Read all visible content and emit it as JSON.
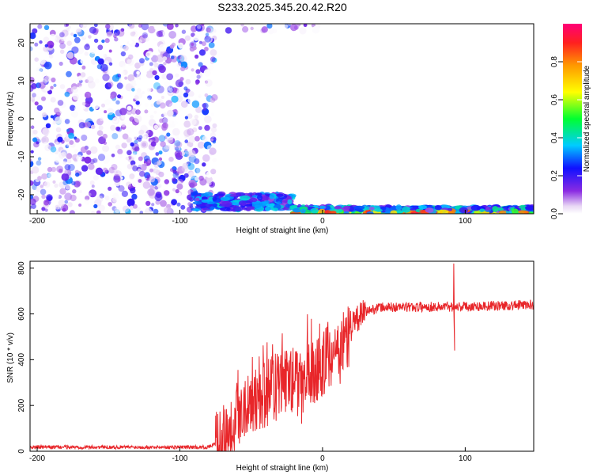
{
  "title": "S233.2025.345.20.42.R20",
  "chart_data": [
    {
      "type": "heatmap",
      "name": "spectrogram",
      "xlabel": "Height of straight line (km)",
      "ylabel": "Frequency (Hz)",
      "xlim": [
        -205,
        148
      ],
      "ylim": [
        -25,
        25
      ],
      "xticks": [
        -200,
        -100,
        0,
        100
      ],
      "xtick_labels": [
        "-200",
        "-100",
        "0",
        "100"
      ],
      "yticks": [
        -20,
        -10,
        0,
        10,
        20
      ],
      "ytick_labels": [
        "-20",
        "-10",
        "0",
        "10",
        "20"
      ],
      "colorbar": {
        "label": "Normalized spectral amplitude",
        "range": [
          0.0,
          1.0
        ],
        "ticks": [
          0.0,
          0.2,
          0.4,
          0.6,
          0.8
        ],
        "tick_labels": [
          "0.0",
          "0.2",
          "0.4",
          "0.6",
          "0.8"
        ]
      },
      "regions": [
        {
          "name": "noise",
          "x_range": [
            -205,
            -75
          ],
          "f_range": [
            -25,
            25
          ],
          "amplitude": 0.15
        },
        {
          "name": "noise-top",
          "x_range": [
            -75,
            0
          ],
          "f_range": [
            23,
            25
          ],
          "amplitude": 0.15
        },
        {
          "name": "signal-band-early",
          "x_range": [
            -90,
            -20
          ],
          "f_range": [
            -24,
            -19
          ],
          "amplitude": 0.35
        },
        {
          "name": "signal-band-main",
          "x_range": [
            -20,
            148
          ],
          "f_range": [
            -25,
            -21
          ],
          "amplitude": 0.6
        }
      ]
    },
    {
      "type": "line",
      "name": "snr",
      "xlabel": "Height of straight line (km)",
      "ylabel": "SNR (10 * v/v)",
      "xlim": [
        -205,
        148
      ],
      "ylim": [
        0,
        830
      ],
      "xticks": [
        -200,
        -100,
        0,
        100
      ],
      "xtick_labels": [
        "-200",
        "-100",
        "0",
        "100"
      ],
      "yticks": [
        0,
        200,
        400,
        600,
        800
      ],
      "ytick_labels": [
        "0",
        "200",
        "400",
        "600",
        "800"
      ],
      "color": "#e8262a",
      "anchors": [
        [
          -205,
          18
        ],
        [
          -80,
          18
        ],
        [
          -70,
          50
        ],
        [
          -60,
          170
        ],
        [
          -50,
          230
        ],
        [
          -40,
          250
        ],
        [
          -30,
          290
        ],
        [
          -20,
          320
        ],
        [
          -15,
          260
        ],
        [
          -10,
          370
        ],
        [
          -5,
          330
        ],
        [
          0,
          380
        ],
        [
          5,
          430
        ],
        [
          10,
          390
        ],
        [
          15,
          470
        ],
        [
          20,
          540
        ],
        [
          25,
          580
        ],
        [
          30,
          610
        ],
        [
          40,
          628
        ],
        [
          60,
          630
        ],
        [
          90,
          632
        ],
        [
          120,
          635
        ],
        [
          148,
          640
        ]
      ],
      "spikes": [
        [
          92,
          820
        ],
        [
          92.6,
          440
        ]
      ]
    }
  ]
}
